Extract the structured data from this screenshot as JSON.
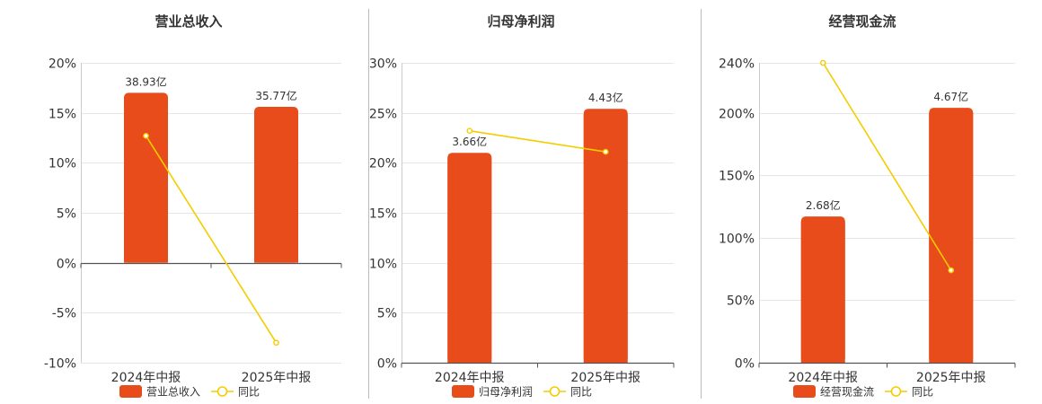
{
  "colors": {
    "bar": "#E84C1A",
    "line": "#F5CC00",
    "grid": "#E6E6E6",
    "axis": "#555555",
    "divider": "#BBBBBB"
  },
  "chart_data": [
    {
      "type": "bar",
      "title": "营业总收入",
      "categories": [
        "2024年中报",
        "2025年中报"
      ],
      "series": [
        {
          "name": "营业总收入",
          "type": "bar",
          "values": [
            17.0,
            15.6
          ],
          "labels": [
            "38.93亿",
            "35.77亿"
          ]
        },
        {
          "name": "同比",
          "type": "line",
          "values": [
            12.7,
            -8.0
          ]
        }
      ],
      "ylim": [
        -10,
        20
      ],
      "yticks": [
        20,
        15,
        10,
        5,
        0,
        -5,
        -10
      ],
      "ytick_labels": [
        "20%",
        "15%",
        "10%",
        "5%",
        "0%",
        "-5%",
        "-10%"
      ],
      "xlabel": "",
      "ylabel": "",
      "grid": true,
      "legend": "bottom"
    },
    {
      "type": "bar",
      "title": "归母净利润",
      "categories": [
        "2024年中报",
        "2025年中报"
      ],
      "series": [
        {
          "name": "归母净利润",
          "type": "bar",
          "values": [
            21.0,
            25.4
          ],
          "labels": [
            "3.66亿",
            "4.43亿"
          ]
        },
        {
          "name": "同比",
          "type": "line",
          "values": [
            23.2,
            21.1
          ]
        }
      ],
      "ylim": [
        0,
        30
      ],
      "yticks": [
        30,
        25,
        20,
        15,
        10,
        5,
        0
      ],
      "ytick_labels": [
        "30%",
        "25%",
        "20%",
        "15%",
        "10%",
        "5%",
        "0%"
      ],
      "xlabel": "",
      "ylabel": "",
      "grid": true,
      "legend": "bottom"
    },
    {
      "type": "bar",
      "title": "经营现金流",
      "categories": [
        "2024年中报",
        "2025年中报"
      ],
      "series": [
        {
          "name": "经营现金流",
          "type": "bar",
          "values": [
            117,
            204
          ],
          "labels": [
            "2.68亿",
            "4.67亿"
          ]
        },
        {
          "name": "同比",
          "type": "line",
          "values": [
            240,
            74
          ]
        }
      ],
      "ylim": [
        0,
        240
      ],
      "yticks": [
        240,
        200,
        150,
        100,
        50,
        0
      ],
      "ytick_labels": [
        "240%",
        "200%",
        "150%",
        "100%",
        "50%",
        "0%"
      ],
      "xlabel": "",
      "ylabel": "",
      "grid": true,
      "legend": "bottom"
    }
  ]
}
